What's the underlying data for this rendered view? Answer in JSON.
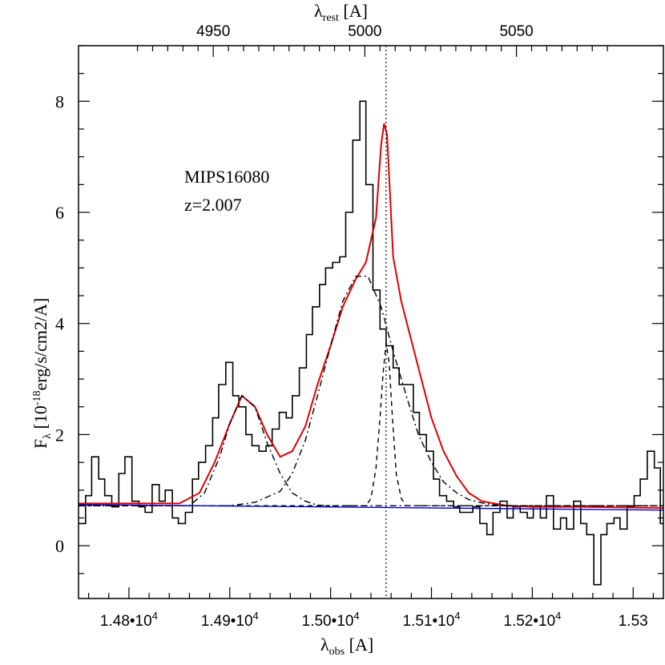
{
  "chart_data": {
    "type": "line",
    "object_name": "MIPS16080",
    "redshift_label": "z=2.007",
    "xlabel_obs": {
      "main": "λ",
      "sub": "obs",
      "unit": " [A]"
    },
    "xlabel_rest": {
      "main": "λ",
      "sub": "rest",
      "unit": " [A]"
    },
    "ylabel": {
      "pre": "F",
      "sub": "λ",
      "mid": " [10",
      "sup": "-18",
      "post": "erg/s/cm2/A]"
    },
    "xlim": [
      14750,
      15330
    ],
    "ylim": [
      -0.95,
      9.0
    ],
    "rest_ticks": [
      {
        "value": 4950,
        "label": "4950"
      },
      {
        "value": 5000,
        "label": "5000"
      },
      {
        "value": 5050,
        "label": "5050"
      }
    ],
    "x_ticks": [
      {
        "value": 14800,
        "label": "1.48•10",
        "exp": "4"
      },
      {
        "value": 14900,
        "label": "1.49•10",
        "exp": "4"
      },
      {
        "value": 15000,
        "label": "1.50•10",
        "exp": "4"
      },
      {
        "value": 15100,
        "label": "1.51•10",
        "exp": "4"
      },
      {
        "value": 15200,
        "label": "1.52•10",
        "exp": "4"
      },
      {
        "value": 15300,
        "label": "1.53",
        "exp": ""
      }
    ],
    "y_ticks": [
      {
        "value": 0,
        "label": "0"
      },
      {
        "value": 2,
        "label": "2"
      },
      {
        "value": 4,
        "label": "4"
      },
      {
        "value": 6,
        "label": "6"
      },
      {
        "value": 8,
        "label": "8"
      }
    ],
    "vertical_line_x": 15055,
    "series": [
      {
        "style": "histogram",
        "color": "#000000",
        "x": [
          14750,
          14757,
          14763,
          14770,
          14776,
          14783,
          14790,
          14796,
          14803,
          14810,
          14816,
          14823,
          14830,
          14836,
          14843,
          14849,
          14856,
          14863,
          14869,
          14876,
          14883,
          14889,
          14896,
          14903,
          14909,
          14916,
          14922,
          14929,
          14936,
          14942,
          14949,
          14956,
          14962,
          14969,
          14976,
          14982,
          14989,
          14995,
          15002,
          15009,
          15015,
          15022,
          15029,
          15035,
          15042,
          15049,
          15055,
          15062,
          15068,
          15075,
          15082,
          15088,
          15095,
          15102,
          15108,
          15115,
          15122,
          15128,
          15135,
          15141,
          15148,
          15155,
          15161,
          15168,
          15175,
          15181,
          15188,
          15195,
          15201,
          15208,
          15214,
          15221,
          15228,
          15234,
          15241,
          15248,
          15254,
          15261,
          15268,
          15274,
          15281,
          15287,
          15294,
          15301,
          15307,
          15314,
          15321,
          15327
        ],
        "y": [
          0.4,
          0.9,
          1.6,
          1.2,
          0.9,
          0.7,
          1.3,
          1.6,
          0.8,
          0.7,
          0.6,
          1.1,
          0.8,
          1.0,
          0.5,
          0.4,
          0.6,
          1.2,
          1.5,
          1.8,
          2.3,
          2.9,
          3.3,
          2.7,
          2.5,
          2.0,
          1.8,
          1.7,
          1.8,
          2.1,
          2.4,
          2.3,
          2.7,
          3.2,
          3.8,
          4.3,
          4.7,
          5.0,
          5.1,
          5.2,
          6.0,
          7.3,
          8.0,
          6.5,
          4.6,
          3.9,
          3.6,
          3.2,
          2.9,
          2.9,
          2.4,
          2.0,
          1.7,
          1.2,
          0.9,
          0.8,
          0.7,
          0.6,
          0.6,
          0.7,
          0.4,
          0.2,
          0.6,
          0.8,
          0.5,
          0.7,
          0.6,
          0.5,
          0.7,
          0.5,
          0.9,
          0.3,
          0.5,
          0.3,
          0.8,
          0.4,
          0.2,
          -0.7,
          0.2,
          0.4,
          0.5,
          0.3,
          0.7,
          0.9,
          1.2,
          1.7,
          1.4,
          0.4
        ]
      },
      {
        "style": "solid",
        "color": "#e00000",
        "x": [
          14750,
          14850,
          14870,
          14885,
          14900,
          14912,
          14925,
          14937,
          14950,
          14962,
          14975,
          14987,
          15000,
          15012,
          15025,
          15035,
          15045,
          15050,
          15053,
          15056,
          15062,
          15070,
          15080,
          15090,
          15100,
          15112,
          15125,
          15137,
          15150,
          15175,
          15200,
          15250,
          15330
        ],
        "y": [
          0.76,
          0.76,
          0.95,
          1.5,
          2.2,
          2.7,
          2.5,
          2.0,
          1.6,
          1.7,
          2.15,
          2.9,
          3.6,
          4.3,
          4.8,
          5.1,
          5.9,
          7.2,
          7.6,
          7.4,
          5.2,
          4.4,
          3.7,
          3.0,
          2.3,
          1.7,
          1.25,
          0.95,
          0.8,
          0.72,
          0.7,
          0.7,
          0.68
        ]
      },
      {
        "style": "dashed",
        "color": "#000000",
        "x": [
          14750,
          15035,
          15040,
          15045,
          15049,
          15052,
          15055,
          15058,
          15061,
          15065,
          15070,
          15075,
          15330
        ],
        "y": [
          0.72,
          0.72,
          0.85,
          1.4,
          2.3,
          3.1,
          3.65,
          3.3,
          2.4,
          1.3,
          0.85,
          0.72,
          0.72
        ]
      },
      {
        "style": "dashdot",
        "color": "#000000",
        "x": [
          14750,
          14860,
          14875,
          14890,
          14900,
          14912,
          14925,
          14937,
          14950,
          14962,
          14975,
          14987,
          15000,
          15012,
          15025,
          15040,
          15050,
          15062,
          15075,
          15087,
          15100,
          15112,
          15125,
          15137,
          15150,
          15175,
          15200,
          15330
        ],
        "y": [
          0.72,
          0.72,
          0.95,
          1.6,
          2.2,
          2.7,
          2.5,
          1.85,
          1.3,
          0.95,
          0.8,
          0.73,
          0.72,
          0.72,
          0.72,
          0.72,
          0.72,
          0.72,
          0.72,
          0.72,
          0.72,
          0.72,
          0.72,
          0.72,
          0.72,
          0.72,
          0.72,
          0.72
        ]
      },
      {
        "style": "dashdot",
        "color": "#000000",
        "x": [
          14750,
          14900,
          14925,
          14950,
          14962,
          14975,
          14987,
          15000,
          15012,
          15025,
          15037,
          15050,
          15062,
          15075,
          15087,
          15100,
          15112,
          15125,
          15137,
          15150,
          15165,
          15180,
          15330
        ],
        "y": [
          0.72,
          0.72,
          0.78,
          0.98,
          1.3,
          1.9,
          2.7,
          3.6,
          4.4,
          4.85,
          4.85,
          4.3,
          3.5,
          2.7,
          2.0,
          1.5,
          1.15,
          0.95,
          0.83,
          0.77,
          0.73,
          0.72,
          0.72
        ]
      },
      {
        "style": "solid",
        "color": "#0000cc",
        "x": [
          14750,
          15330
        ],
        "y": [
          0.74,
          0.64
        ]
      }
    ]
  }
}
